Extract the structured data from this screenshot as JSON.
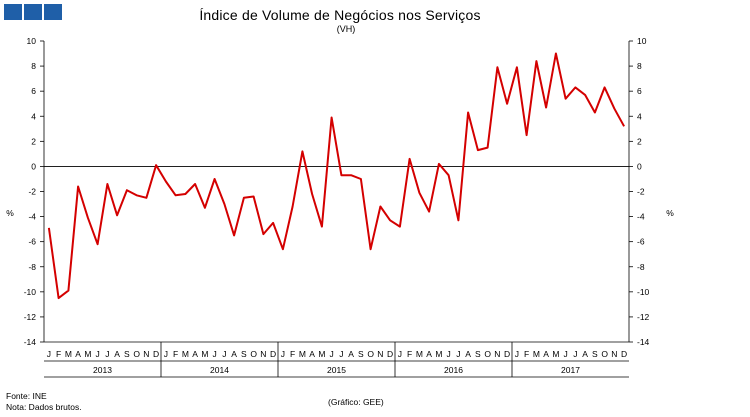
{
  "header": {
    "title": "Índice de Volume de Negócios nos Serviços",
    "subtitle": "(VH)"
  },
  "footer": {
    "source": "Fonte: INE",
    "note": "Nota: Dados brutos.",
    "credit": "(Gráfico: GEE)"
  },
  "colors": {
    "series": "#d40000",
    "logo": "#1f5fa8",
    "axis": "#000000"
  },
  "chart_data": {
    "type": "line",
    "title": "Índice de Volume de Negócios nos Serviços",
    "subtitle": "(VH)",
    "ylabel_left": "%",
    "ylabel_right": "%",
    "ylim": [
      -14,
      10
    ],
    "yticks": [
      10,
      8,
      6,
      4,
      2,
      0,
      -2,
      -4,
      -6,
      -8,
      -10,
      -12,
      -14
    ],
    "grid": false,
    "month_labels": [
      "J",
      "F",
      "M",
      "A",
      "M",
      "J",
      "J",
      "A",
      "S",
      "O",
      "N",
      "D"
    ],
    "years": [
      "2013",
      "2014",
      "2015",
      "2016",
      "2017"
    ],
    "series": [
      {
        "values": [
          -4.9,
          -10.5,
          -9.9,
          -1.6,
          -4.1,
          -6.2,
          -1.4,
          -3.9,
          -1.9,
          -2.3,
          -2.5,
          0.1,
          -1.2,
          -2.3,
          -2.2,
          -1.4,
          -3.3,
          -1.0,
          -3.0,
          -5.5,
          -2.5,
          -2.4,
          -5.4,
          -4.5,
          -6.6,
          -3.2,
          1.2,
          -2.2,
          -4.8,
          3.9,
          -0.7,
          -0.7,
          -1.0,
          -6.6,
          -3.2,
          -4.3,
          -4.8,
          0.6,
          -2.1,
          -3.6,
          0.2,
          -0.7,
          -4.3,
          4.3,
          1.3,
          1.5,
          7.9,
          5.0,
          7.9,
          2.5,
          8.4,
          4.7,
          9.0,
          5.4,
          6.3,
          5.7,
          4.3,
          6.3,
          4.6,
          3.2
        ]
      }
    ]
  }
}
